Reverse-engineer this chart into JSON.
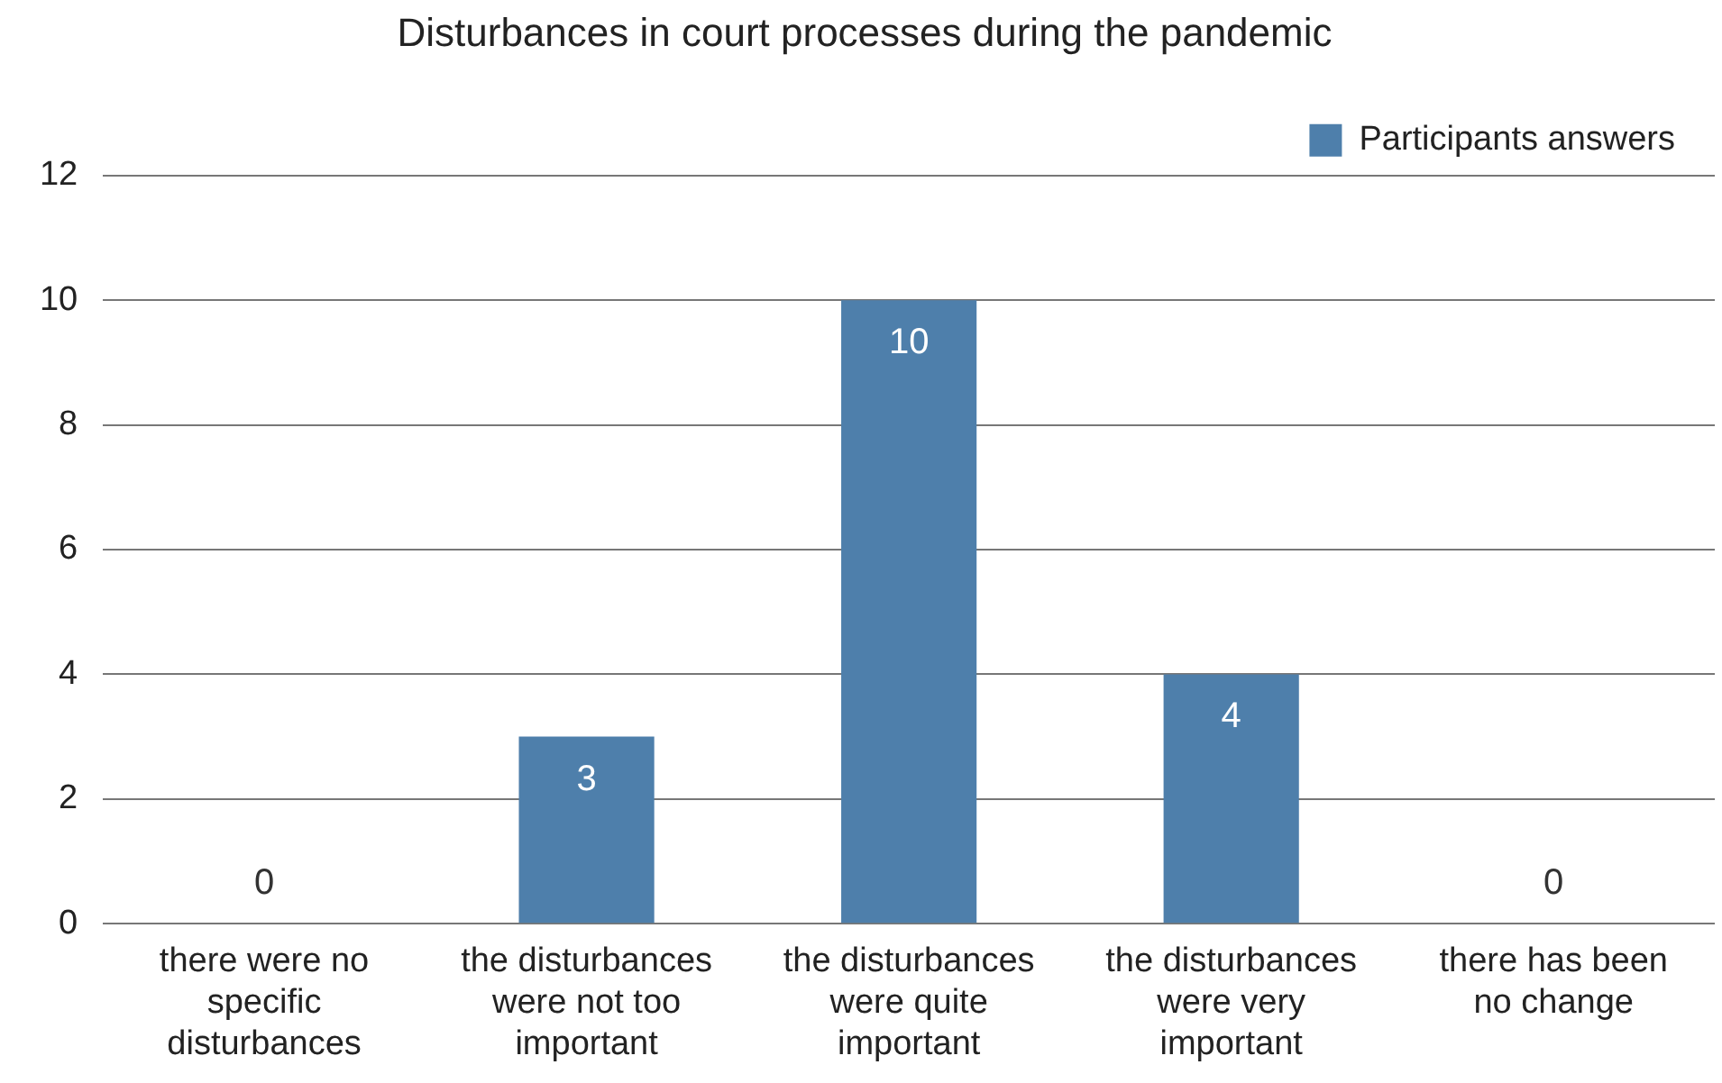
{
  "chart_data": {
    "type": "bar",
    "title": "Disturbances in court processes during the pandemic",
    "categories": [
      "there were no specific disturbances",
      "the disturbances were not too important",
      "the disturbances were quite important",
      "the disturbances were very important",
      "there has been no change"
    ],
    "series": [
      {
        "name": "Participants answers",
        "color": "#4e7fab",
        "values": [
          0,
          3,
          10,
          4,
          0
        ]
      }
    ],
    "ylim": [
      0,
      12
    ],
    "yticks": [
      0,
      2,
      4,
      6,
      8,
      10,
      12
    ],
    "grid": "y",
    "legend": "top right",
    "data_labels": true
  }
}
